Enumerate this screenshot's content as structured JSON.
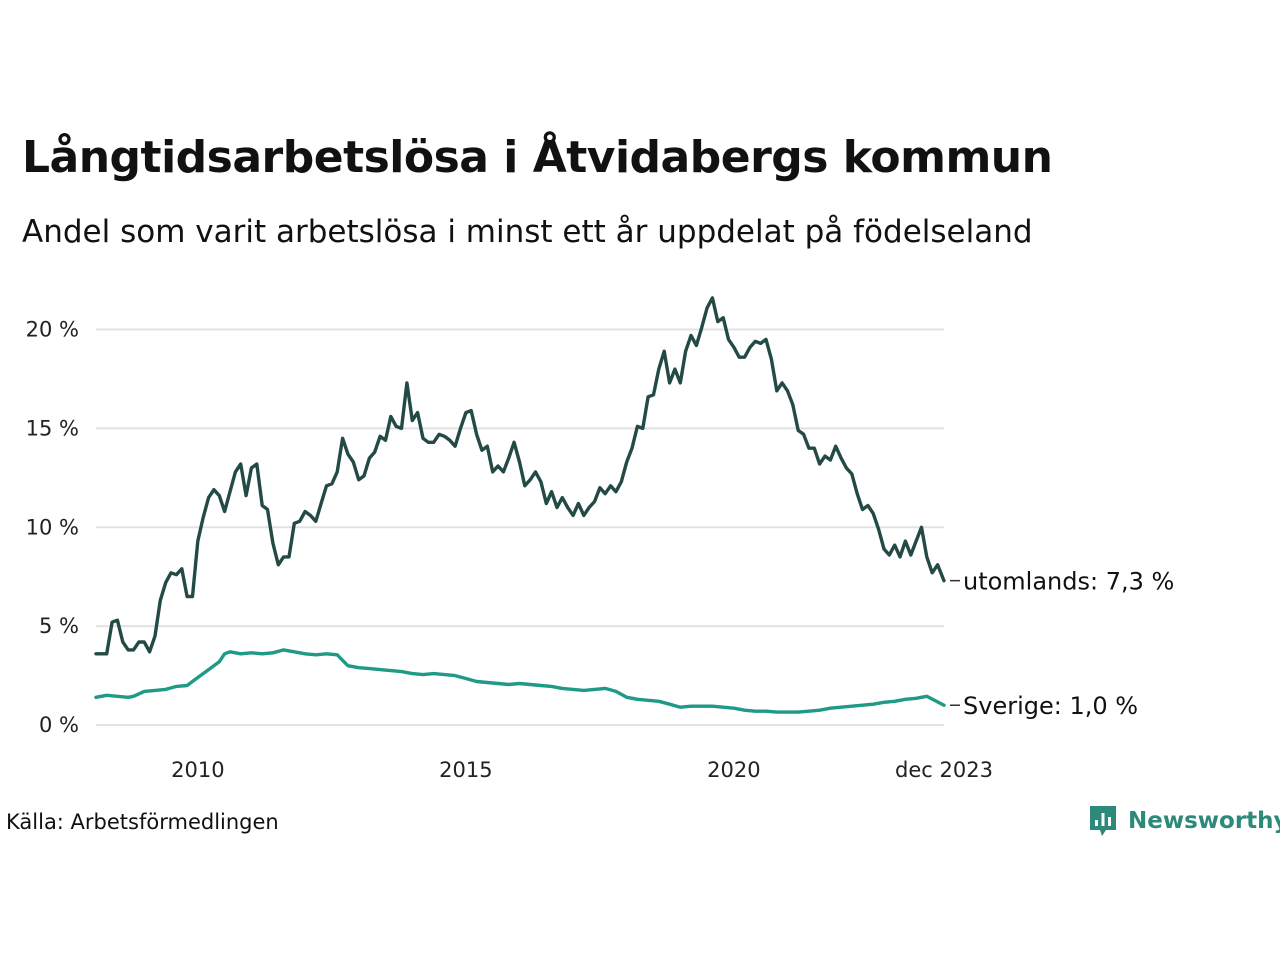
{
  "title": "Långtidsarbetslösa i Åtvidabergs kommun",
  "subtitle": "Andel som varit arbetslösa i minst ett år uppdelat på födelseland",
  "source": "Källa: Arbetsförmedlingen",
  "brand": "Newsworthy",
  "colors": {
    "utomlands": "#234a44",
    "sverige": "#1f9a86",
    "grid": "#e2e2e2",
    "brand": "#2d8a7a"
  },
  "chart_data": {
    "type": "line",
    "x_unit": "year (decimal, monthly data)",
    "xlim": [
      2008.1,
      2023.92
    ],
    "ylim": [
      0,
      22
    ],
    "y_ticks": [
      {
        "value": 0,
        "label": "0 %"
      },
      {
        "value": 5,
        "label": "5 %"
      },
      {
        "value": 10,
        "label": "10 %"
      },
      {
        "value": 15,
        "label": "15 %"
      },
      {
        "value": 20,
        "label": "20 %"
      }
    ],
    "x_ticks": [
      {
        "value": 2010,
        "label": "2010"
      },
      {
        "value": 2015,
        "label": "2015"
      },
      {
        "value": 2020,
        "label": "2020"
      },
      {
        "value": 2023.92,
        "label": "dec 2023"
      }
    ],
    "grid": "horizontal",
    "series": [
      {
        "name": "utomlands",
        "end_label": "utomlands: 7,3 %",
        "points": [
          [
            2008.1,
            3.6
          ],
          [
            2008.3,
            3.6
          ],
          [
            2008.4,
            5.2
          ],
          [
            2008.5,
            5.3
          ],
          [
            2008.6,
            4.2
          ],
          [
            2008.7,
            3.8
          ],
          [
            2008.8,
            3.8
          ],
          [
            2008.9,
            4.2
          ],
          [
            2009.0,
            4.2
          ],
          [
            2009.1,
            3.7
          ],
          [
            2009.2,
            4.5
          ],
          [
            2009.3,
            6.3
          ],
          [
            2009.4,
            7.2
          ],
          [
            2009.5,
            7.7
          ],
          [
            2009.6,
            7.6
          ],
          [
            2009.7,
            7.9
          ],
          [
            2009.8,
            6.5
          ],
          [
            2009.9,
            6.5
          ],
          [
            2010.0,
            9.3
          ],
          [
            2010.1,
            10.5
          ],
          [
            2010.2,
            11.5
          ],
          [
            2010.3,
            11.9
          ],
          [
            2010.4,
            11.6
          ],
          [
            2010.5,
            10.8
          ],
          [
            2010.6,
            11.8
          ],
          [
            2010.7,
            12.8
          ],
          [
            2010.8,
            13.2
          ],
          [
            2010.9,
            11.6
          ],
          [
            2011.0,
            13.0
          ],
          [
            2011.1,
            13.2
          ],
          [
            2011.2,
            11.1
          ],
          [
            2011.3,
            10.9
          ],
          [
            2011.4,
            9.2
          ],
          [
            2011.5,
            8.1
          ],
          [
            2011.6,
            8.5
          ],
          [
            2011.7,
            8.5
          ],
          [
            2011.8,
            10.2
          ],
          [
            2011.9,
            10.3
          ],
          [
            2012.0,
            10.8
          ],
          [
            2012.1,
            10.6
          ],
          [
            2012.2,
            10.3
          ],
          [
            2012.3,
            11.2
          ],
          [
            2012.4,
            12.1
          ],
          [
            2012.5,
            12.2
          ],
          [
            2012.6,
            12.8
          ],
          [
            2012.7,
            14.5
          ],
          [
            2012.8,
            13.7
          ],
          [
            2012.9,
            13.3
          ],
          [
            2013.0,
            12.4
          ],
          [
            2013.1,
            12.6
          ],
          [
            2013.2,
            13.5
          ],
          [
            2013.3,
            13.8
          ],
          [
            2013.4,
            14.6
          ],
          [
            2013.5,
            14.4
          ],
          [
            2013.6,
            15.6
          ],
          [
            2013.7,
            15.1
          ],
          [
            2013.8,
            15.0
          ],
          [
            2013.9,
            17.3
          ],
          [
            2014.0,
            15.4
          ],
          [
            2014.1,
            15.8
          ],
          [
            2014.2,
            14.5
          ],
          [
            2014.3,
            14.3
          ],
          [
            2014.4,
            14.3
          ],
          [
            2014.5,
            14.7
          ],
          [
            2014.6,
            14.6
          ],
          [
            2014.7,
            14.4
          ],
          [
            2014.8,
            14.1
          ],
          [
            2014.9,
            15.0
          ],
          [
            2015.0,
            15.8
          ],
          [
            2015.1,
            15.9
          ],
          [
            2015.2,
            14.7
          ],
          [
            2015.3,
            13.9
          ],
          [
            2015.4,
            14.1
          ],
          [
            2015.5,
            12.8
          ],
          [
            2015.6,
            13.1
          ],
          [
            2015.7,
            12.8
          ],
          [
            2015.8,
            13.5
          ],
          [
            2015.9,
            14.3
          ],
          [
            2016.0,
            13.3
          ],
          [
            2016.1,
            12.1
          ],
          [
            2016.2,
            12.4
          ],
          [
            2016.3,
            12.8
          ],
          [
            2016.4,
            12.3
          ],
          [
            2016.5,
            11.2
          ],
          [
            2016.6,
            11.8
          ],
          [
            2016.7,
            11.0
          ],
          [
            2016.8,
            11.5
          ],
          [
            2016.9,
            11.0
          ],
          [
            2017.0,
            10.6
          ],
          [
            2017.1,
            11.2
          ],
          [
            2017.2,
            10.6
          ],
          [
            2017.3,
            11.0
          ],
          [
            2017.4,
            11.3
          ],
          [
            2017.5,
            12.0
          ],
          [
            2017.6,
            11.7
          ],
          [
            2017.7,
            12.1
          ],
          [
            2017.8,
            11.8
          ],
          [
            2017.9,
            12.3
          ],
          [
            2018.0,
            13.3
          ],
          [
            2018.1,
            14.0
          ],
          [
            2018.2,
            15.1
          ],
          [
            2018.3,
            15.0
          ],
          [
            2018.4,
            16.6
          ],
          [
            2018.5,
            16.7
          ],
          [
            2018.6,
            18.0
          ],
          [
            2018.7,
            18.9
          ],
          [
            2018.8,
            17.3
          ],
          [
            2018.9,
            18.0
          ],
          [
            2019.0,
            17.3
          ],
          [
            2019.1,
            18.9
          ],
          [
            2019.2,
            19.7
          ],
          [
            2019.3,
            19.2
          ],
          [
            2019.4,
            20.1
          ],
          [
            2019.5,
            21.1
          ],
          [
            2019.6,
            21.6
          ],
          [
            2019.7,
            20.4
          ],
          [
            2019.8,
            20.6
          ],
          [
            2019.9,
            19.5
          ],
          [
            2020.0,
            19.1
          ],
          [
            2020.1,
            18.6
          ],
          [
            2020.2,
            18.6
          ],
          [
            2020.3,
            19.1
          ],
          [
            2020.4,
            19.4
          ],
          [
            2020.5,
            19.3
          ],
          [
            2020.6,
            19.5
          ],
          [
            2020.7,
            18.5
          ],
          [
            2020.8,
            16.9
          ],
          [
            2020.9,
            17.3
          ],
          [
            2021.0,
            16.9
          ],
          [
            2021.1,
            16.2
          ],
          [
            2021.2,
            14.9
          ],
          [
            2021.3,
            14.7
          ],
          [
            2021.4,
            14.0
          ],
          [
            2021.5,
            14.0
          ],
          [
            2021.6,
            13.2
          ],
          [
            2021.7,
            13.6
          ],
          [
            2021.8,
            13.4
          ],
          [
            2021.9,
            14.1
          ],
          [
            2022.0,
            13.5
          ],
          [
            2022.1,
            13.0
          ],
          [
            2022.2,
            12.7
          ],
          [
            2022.3,
            11.7
          ],
          [
            2022.4,
            10.9
          ],
          [
            2022.5,
            11.1
          ],
          [
            2022.6,
            10.7
          ],
          [
            2022.7,
            9.9
          ],
          [
            2022.8,
            8.9
          ],
          [
            2022.9,
            8.6
          ],
          [
            2023.0,
            9.1
          ],
          [
            2023.1,
            8.5
          ],
          [
            2023.2,
            9.3
          ],
          [
            2023.3,
            8.6
          ],
          [
            2023.4,
            9.3
          ],
          [
            2023.5,
            10.0
          ],
          [
            2023.6,
            8.5
          ],
          [
            2023.7,
            7.7
          ],
          [
            2023.8,
            8.1
          ],
          [
            2023.92,
            7.3
          ]
        ]
      },
      {
        "name": "Sverige",
        "end_label": "Sverige: 1,0 %",
        "points": [
          [
            2008.1,
            1.4
          ],
          [
            2008.3,
            1.5
          ],
          [
            2008.5,
            1.45
          ],
          [
            2008.7,
            1.4
          ],
          [
            2008.8,
            1.45
          ],
          [
            2009.0,
            1.7
          ],
          [
            2009.2,
            1.75
          ],
          [
            2009.4,
            1.8
          ],
          [
            2009.6,
            1.95
          ],
          [
            2009.8,
            2.0
          ],
          [
            2010.0,
            2.4
          ],
          [
            2010.2,
            2.8
          ],
          [
            2010.4,
            3.2
          ],
          [
            2010.5,
            3.6
          ],
          [
            2010.6,
            3.7
          ],
          [
            2010.8,
            3.6
          ],
          [
            2011.0,
            3.65
          ],
          [
            2011.2,
            3.6
          ],
          [
            2011.4,
            3.65
          ],
          [
            2011.6,
            3.8
          ],
          [
            2011.8,
            3.7
          ],
          [
            2012.0,
            3.6
          ],
          [
            2012.2,
            3.55
          ],
          [
            2012.4,
            3.6
          ],
          [
            2012.6,
            3.55
          ],
          [
            2012.8,
            3.0
          ],
          [
            2013.0,
            2.9
          ],
          [
            2013.2,
            2.85
          ],
          [
            2013.4,
            2.8
          ],
          [
            2013.6,
            2.75
          ],
          [
            2013.8,
            2.7
          ],
          [
            2014.0,
            2.6
          ],
          [
            2014.2,
            2.55
          ],
          [
            2014.4,
            2.6
          ],
          [
            2014.6,
            2.55
          ],
          [
            2014.8,
            2.5
          ],
          [
            2015.0,
            2.35
          ],
          [
            2015.2,
            2.2
          ],
          [
            2015.4,
            2.15
          ],
          [
            2015.6,
            2.1
          ],
          [
            2015.8,
            2.05
          ],
          [
            2016.0,
            2.1
          ],
          [
            2016.2,
            2.05
          ],
          [
            2016.4,
            2.0
          ],
          [
            2016.6,
            1.95
          ],
          [
            2016.8,
            1.85
          ],
          [
            2017.0,
            1.8
          ],
          [
            2017.2,
            1.75
          ],
          [
            2017.4,
            1.8
          ],
          [
            2017.6,
            1.85
          ],
          [
            2017.8,
            1.7
          ],
          [
            2018.0,
            1.4
          ],
          [
            2018.2,
            1.3
          ],
          [
            2018.4,
            1.25
          ],
          [
            2018.6,
            1.2
          ],
          [
            2018.8,
            1.05
          ],
          [
            2019.0,
            0.9
          ],
          [
            2019.2,
            0.95
          ],
          [
            2019.4,
            0.95
          ],
          [
            2019.6,
            0.95
          ],
          [
            2019.8,
            0.9
          ],
          [
            2020.0,
            0.85
          ],
          [
            2020.2,
            0.75
          ],
          [
            2020.4,
            0.7
          ],
          [
            2020.6,
            0.7
          ],
          [
            2020.8,
            0.65
          ],
          [
            2021.0,
            0.65
          ],
          [
            2021.2,
            0.65
          ],
          [
            2021.4,
            0.7
          ],
          [
            2021.6,
            0.75
          ],
          [
            2021.8,
            0.85
          ],
          [
            2022.0,
            0.9
          ],
          [
            2022.2,
            0.95
          ],
          [
            2022.4,
            1.0
          ],
          [
            2022.6,
            1.05
          ],
          [
            2022.8,
            1.15
          ],
          [
            2023.0,
            1.2
          ],
          [
            2023.2,
            1.3
          ],
          [
            2023.4,
            1.35
          ],
          [
            2023.6,
            1.45
          ],
          [
            2023.92,
            1.0
          ]
        ]
      }
    ]
  }
}
